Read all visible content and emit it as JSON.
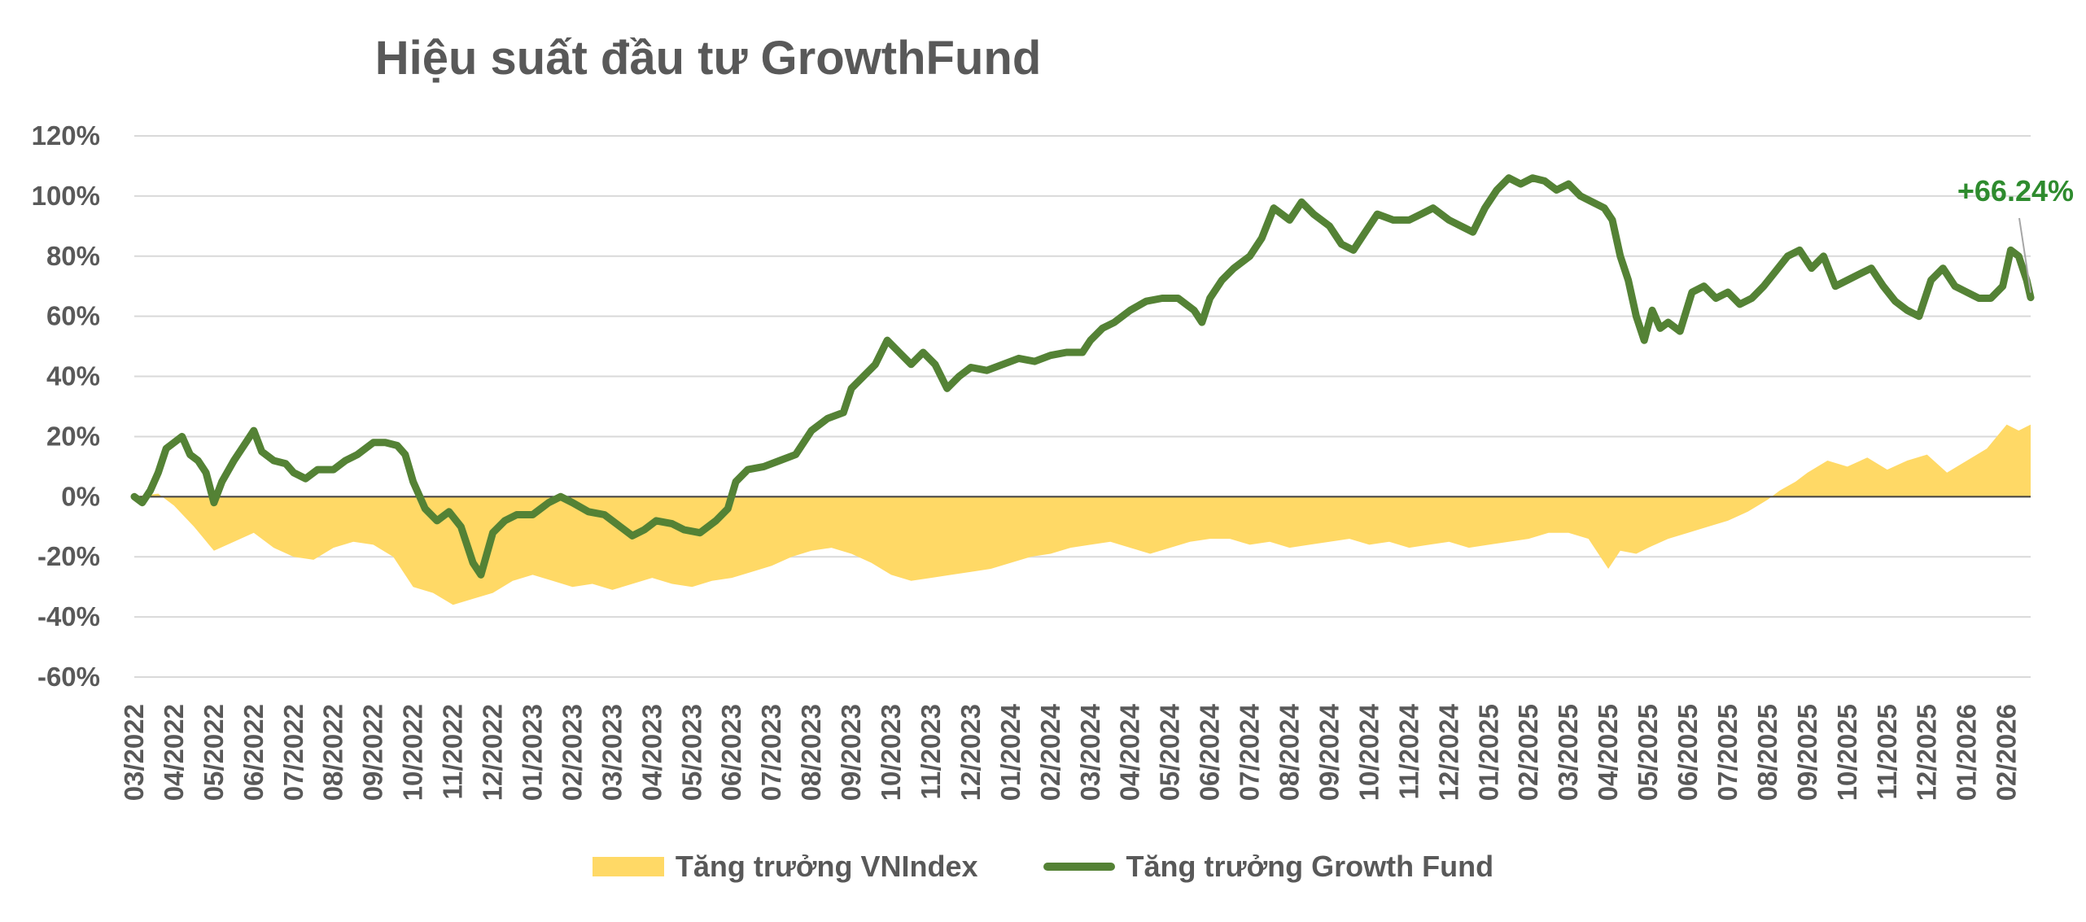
{
  "chart_data": {
    "type": "area",
    "title": "Hiệu suất đầu tư GrowthFund",
    "xlabel": "",
    "ylabel": "",
    "ylim": [
      -60,
      120
    ],
    "y_ticks": [
      "120%",
      "100%",
      "80%",
      "60%",
      "40%",
      "20%",
      "0%",
      "-20%",
      "-40%",
      "-60%"
    ],
    "y_tick_values": [
      120,
      100,
      80,
      60,
      40,
      20,
      0,
      -20,
      -40,
      -60
    ],
    "categories": [
      "03/2022",
      "04/2022",
      "05/2022",
      "06/2022",
      "07/2022",
      "08/2022",
      "09/2022",
      "10/2022",
      "11/2022",
      "12/2022",
      "01/2023",
      "02/2023",
      "03/2023",
      "04/2023",
      "05/2023",
      "06/2023",
      "07/2023",
      "08/2023",
      "09/2023",
      "10/2023",
      "11/2023",
      "12/2023",
      "01/2024",
      "02/2024",
      "03/2024",
      "04/2024",
      "05/2024",
      "06/2024",
      "07/2024",
      "08/2024",
      "09/2024",
      "10/2024",
      "11/2024",
      "12/2024",
      "01/2025",
      "02/2025",
      "03/2025",
      "04/2025",
      "05/2025",
      "06/2025",
      "07/2025",
      "08/2025",
      "09/2025",
      "10/2025",
      "11/2025",
      "12/2025",
      "01/2026",
      "02/2026"
    ],
    "x_end": 47.6,
    "grid": true,
    "legend_position": "bottom",
    "series": [
      {
        "name": "Tăng trưởng VNIndex",
        "kind": "area",
        "color": "#ffd966",
        "points": [
          [
            0,
            0
          ],
          [
            0.6,
            1
          ],
          [
            1,
            -3
          ],
          [
            1.5,
            -10
          ],
          [
            2,
            -18
          ],
          [
            2.5,
            -15
          ],
          [
            3,
            -12
          ],
          [
            3.5,
            -17
          ],
          [
            4,
            -20
          ],
          [
            4.5,
            -21
          ],
          [
            5,
            -17
          ],
          [
            5.5,
            -15
          ],
          [
            6,
            -16
          ],
          [
            6.5,
            -20
          ],
          [
            7,
            -30
          ],
          [
            7.5,
            -32
          ],
          [
            8,
            -36
          ],
          [
            8.5,
            -34
          ],
          [
            9,
            -32
          ],
          [
            9.5,
            -28
          ],
          [
            10,
            -26
          ],
          [
            10.5,
            -28
          ],
          [
            11,
            -30
          ],
          [
            11.5,
            -29
          ],
          [
            12,
            -31
          ],
          [
            12.5,
            -29
          ],
          [
            13,
            -27
          ],
          [
            13.5,
            -29
          ],
          [
            14,
            -30
          ],
          [
            14.5,
            -28
          ],
          [
            15,
            -27
          ],
          [
            15.5,
            -25
          ],
          [
            16,
            -23
          ],
          [
            16.5,
            -20
          ],
          [
            17,
            -18
          ],
          [
            17.5,
            -17
          ],
          [
            18,
            -19
          ],
          [
            18.5,
            -22
          ],
          [
            19,
            -26
          ],
          [
            19.5,
            -28
          ],
          [
            20,
            -27
          ],
          [
            20.5,
            -26
          ],
          [
            21,
            -25
          ],
          [
            21.5,
            -24
          ],
          [
            22,
            -22
          ],
          [
            22.5,
            -20
          ],
          [
            23,
            -19
          ],
          [
            23.5,
            -17
          ],
          [
            24,
            -16
          ],
          [
            24.5,
            -15
          ],
          [
            25,
            -17
          ],
          [
            25.5,
            -19
          ],
          [
            26,
            -17
          ],
          [
            26.5,
            -15
          ],
          [
            27,
            -14
          ],
          [
            27.5,
            -14
          ],
          [
            28,
            -16
          ],
          [
            28.5,
            -15
          ],
          [
            29,
            -17
          ],
          [
            29.5,
            -16
          ],
          [
            30,
            -15
          ],
          [
            30.5,
            -14
          ],
          [
            31,
            -16
          ],
          [
            31.5,
            -15
          ],
          [
            32,
            -17
          ],
          [
            32.5,
            -16
          ],
          [
            33,
            -15
          ],
          [
            33.5,
            -17
          ],
          [
            34,
            -16
          ],
          [
            34.5,
            -15
          ],
          [
            35,
            -14
          ],
          [
            35.5,
            -12
          ],
          [
            36,
            -12
          ],
          [
            36.5,
            -14
          ],
          [
            37,
            -24
          ],
          [
            37.3,
            -18
          ],
          [
            37.7,
            -19
          ],
          [
            38,
            -17
          ],
          [
            38.5,
            -14
          ],
          [
            39,
            -12
          ],
          [
            39.5,
            -10
          ],
          [
            40,
            -8
          ],
          [
            40.5,
            -5
          ],
          [
            41,
            -1
          ],
          [
            41.3,
            2
          ],
          [
            41.7,
            5
          ],
          [
            42,
            8
          ],
          [
            42.5,
            12
          ],
          [
            43,
            10
          ],
          [
            43.5,
            13
          ],
          [
            44,
            9
          ],
          [
            44.5,
            12
          ],
          [
            45,
            14
          ],
          [
            45.5,
            8
          ],
          [
            46,
            12
          ],
          [
            46.5,
            16
          ],
          [
            47,
            24
          ],
          [
            47.3,
            22
          ],
          [
            47.6,
            24
          ]
        ]
      },
      {
        "name": "Tăng trưởng Growth Fund",
        "kind": "line",
        "color": "#548235",
        "points": [
          [
            0,
            0
          ],
          [
            0.2,
            -2
          ],
          [
            0.4,
            2
          ],
          [
            0.6,
            8
          ],
          [
            0.8,
            16
          ],
          [
            1,
            18
          ],
          [
            1.2,
            20
          ],
          [
            1.4,
            14
          ],
          [
            1.6,
            12
          ],
          [
            1.8,
            8
          ],
          [
            2,
            -2
          ],
          [
            2.2,
            5
          ],
          [
            2.5,
            12
          ],
          [
            2.7,
            16
          ],
          [
            3,
            22
          ],
          [
            3.2,
            15
          ],
          [
            3.5,
            12
          ],
          [
            3.8,
            11
          ],
          [
            4,
            8
          ],
          [
            4.3,
            6
          ],
          [
            4.6,
            9
          ],
          [
            5,
            9
          ],
          [
            5.3,
            12
          ],
          [
            5.6,
            14
          ],
          [
            6,
            18
          ],
          [
            6.3,
            18
          ],
          [
            6.6,
            17
          ],
          [
            6.8,
            14
          ],
          [
            7,
            5
          ],
          [
            7.3,
            -4
          ],
          [
            7.6,
            -8
          ],
          [
            7.9,
            -5
          ],
          [
            8.2,
            -10
          ],
          [
            8.5,
            -22
          ],
          [
            8.7,
            -26
          ],
          [
            9,
            -12
          ],
          [
            9.3,
            -8
          ],
          [
            9.6,
            -6
          ],
          [
            10,
            -6
          ],
          [
            10.4,
            -2
          ],
          [
            10.7,
            0
          ],
          [
            11,
            -2
          ],
          [
            11.4,
            -5
          ],
          [
            11.8,
            -6
          ],
          [
            12.2,
            -10
          ],
          [
            12.5,
            -13
          ],
          [
            12.8,
            -11
          ],
          [
            13.1,
            -8
          ],
          [
            13.5,
            -9
          ],
          [
            13.8,
            -11
          ],
          [
            14.2,
            -12
          ],
          [
            14.6,
            -8
          ],
          [
            14.9,
            -4
          ],
          [
            15.1,
            5
          ],
          [
            15.4,
            9
          ],
          [
            15.8,
            10
          ],
          [
            16.2,
            12
          ],
          [
            16.6,
            14
          ],
          [
            17,
            22
          ],
          [
            17.4,
            26
          ],
          [
            17.8,
            28
          ],
          [
            18,
            36
          ],
          [
            18.3,
            40
          ],
          [
            18.6,
            44
          ],
          [
            18.9,
            52
          ],
          [
            19.2,
            48
          ],
          [
            19.5,
            44
          ],
          [
            19.8,
            48
          ],
          [
            20.1,
            44
          ],
          [
            20.4,
            36
          ],
          [
            20.7,
            40
          ],
          [
            21,
            43
          ],
          [
            21.4,
            42
          ],
          [
            21.8,
            44
          ],
          [
            22.2,
            46
          ],
          [
            22.6,
            45
          ],
          [
            23,
            47
          ],
          [
            23.4,
            48
          ],
          [
            23.8,
            48
          ],
          [
            24,
            52
          ],
          [
            24.3,
            56
          ],
          [
            24.6,
            58
          ],
          [
            25,
            62
          ],
          [
            25.4,
            65
          ],
          [
            25.8,
            66
          ],
          [
            26.2,
            66
          ],
          [
            26.6,
            62
          ],
          [
            26.8,
            58
          ],
          [
            27,
            66
          ],
          [
            27.3,
            72
          ],
          [
            27.6,
            76
          ],
          [
            28,
            80
          ],
          [
            28.3,
            86
          ],
          [
            28.6,
            96
          ],
          [
            29,
            92
          ],
          [
            29.3,
            98
          ],
          [
            29.6,
            94
          ],
          [
            30,
            90
          ],
          [
            30.3,
            84
          ],
          [
            30.6,
            82
          ],
          [
            30.9,
            88
          ],
          [
            31.2,
            94
          ],
          [
            31.6,
            92
          ],
          [
            32,
            92
          ],
          [
            32.3,
            94
          ],
          [
            32.6,
            96
          ],
          [
            33,
            92
          ],
          [
            33.3,
            90
          ],
          [
            33.6,
            88
          ],
          [
            33.9,
            96
          ],
          [
            34.2,
            102
          ],
          [
            34.5,
            106
          ],
          [
            34.8,
            104
          ],
          [
            35.1,
            106
          ],
          [
            35.4,
            105
          ],
          [
            35.7,
            102
          ],
          [
            36,
            104
          ],
          [
            36.3,
            100
          ],
          [
            36.6,
            98
          ],
          [
            36.9,
            96
          ],
          [
            37.1,
            92
          ],
          [
            37.3,
            80
          ],
          [
            37.5,
            72
          ],
          [
            37.7,
            60
          ],
          [
            37.9,
            52
          ],
          [
            38.1,
            62
          ],
          [
            38.3,
            56
          ],
          [
            38.5,
            58
          ],
          [
            38.8,
            55
          ],
          [
            39.1,
            68
          ],
          [
            39.4,
            70
          ],
          [
            39.7,
            66
          ],
          [
            40,
            68
          ],
          [
            40.3,
            64
          ],
          [
            40.6,
            66
          ],
          [
            40.9,
            70
          ],
          [
            41.2,
            75
          ],
          [
            41.5,
            80
          ],
          [
            41.8,
            82
          ],
          [
            42.1,
            76
          ],
          [
            42.4,
            80
          ],
          [
            42.7,
            70
          ],
          [
            43,
            72
          ],
          [
            43.3,
            74
          ],
          [
            43.6,
            76
          ],
          [
            43.9,
            70
          ],
          [
            44.2,
            65
          ],
          [
            44.5,
            62
          ],
          [
            44.8,
            60
          ],
          [
            45.1,
            72
          ],
          [
            45.4,
            76
          ],
          [
            45.7,
            70
          ],
          [
            46,
            68
          ],
          [
            46.3,
            66
          ],
          [
            46.6,
            66
          ],
          [
            46.9,
            70
          ],
          [
            47.1,
            82
          ],
          [
            47.3,
            80
          ],
          [
            47.5,
            72
          ],
          [
            47.6,
            66.24
          ]
        ]
      }
    ],
    "annotations": [
      {
        "text": "+66.24%",
        "x": 47.6,
        "y": 66.24
      }
    ]
  },
  "legend": {
    "vnindex_label": "Tăng trưởng VNIndex",
    "fund_label": "Tăng trưởng Growth Fund"
  }
}
